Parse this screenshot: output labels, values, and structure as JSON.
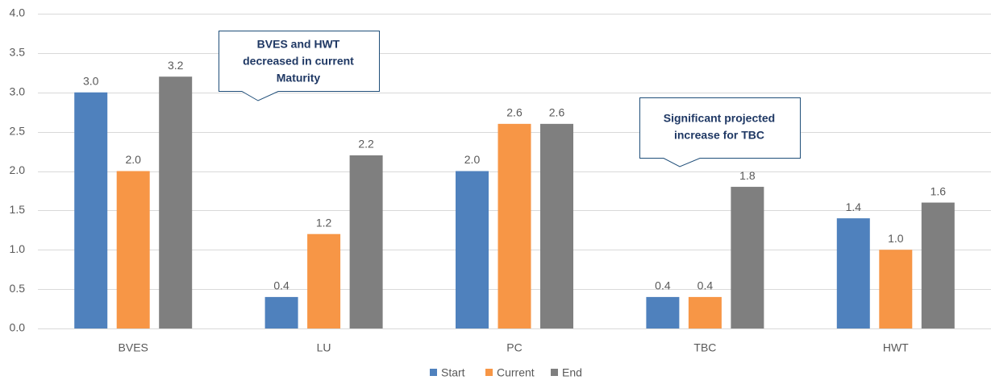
{
  "chart_data": {
    "type": "bar",
    "categories": [
      "BVES",
      "LU",
      "PC",
      "TBC",
      "HWT"
    ],
    "series": [
      {
        "name": "Start",
        "color": "#4f81bd",
        "values": [
          3.0,
          0.4,
          2.0,
          0.4,
          1.4
        ],
        "value_labels": [
          "3.0",
          "0.4",
          "2.0",
          "0.4",
          "1.4"
        ]
      },
      {
        "name": "Current",
        "color": "#f79646",
        "values": [
          2.0,
          1.2,
          2.6,
          0.4,
          1.0
        ],
        "value_labels": [
          "2.0",
          "1.2",
          "2.6",
          "0.4",
          "1.0"
        ]
      },
      {
        "name": "End",
        "color": "#7f7f7f",
        "values": [
          3.2,
          2.2,
          2.6,
          1.8,
          1.6
        ],
        "value_labels": [
          "3.2",
          "2.2",
          "2.6",
          "1.8",
          "1.6"
        ]
      }
    ],
    "ylim": [
      0,
      4
    ],
    "yticks": [
      {
        "value": 0,
        "label": "0.0"
      },
      0.5,
      {
        "value": 1,
        "label": "1.0"
      },
      1.5,
      {
        "value": 2,
        "label": "2.0"
      },
      2.5,
      {
        "value": 3,
        "label": "3.0"
      },
      3.5,
      {
        "value": 4,
        "label": "4.0"
      }
    ],
    "grid": true,
    "legend": "bottom",
    "annotations": [
      {
        "text": [
          "BVES and HWT",
          "decreased in current",
          "Maturity"
        ]
      },
      {
        "text": [
          "Significant projected",
          "increase for TBC"
        ]
      }
    ]
  }
}
